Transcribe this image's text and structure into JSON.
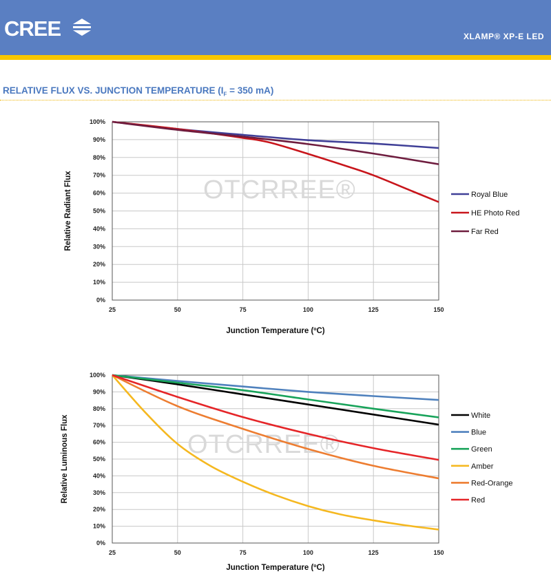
{
  "header": {
    "brand": "CREE",
    "product": "XLAMP® XP-E LED",
    "header_color": "#5a7fc2",
    "stripe_color": "#f7c600"
  },
  "section": {
    "title_main": "RELATIVE FLUX VS. JUNCTION TEMPERATURE (I",
    "title_sub": "F",
    "title_end": " = 350 mA)"
  },
  "watermark": "OTCRREE®",
  "chart_data": [
    {
      "type": "line",
      "title": "",
      "xlabel": "Junction Temperature (ºC)",
      "ylabel": "Relative Radiant Flux",
      "xlim": [
        25,
        150
      ],
      "ylim": [
        0,
        100
      ],
      "x_ticks": [
        "25",
        "50",
        "75",
        "100",
        "125",
        "150"
      ],
      "y_ticks": [
        "0%",
        "10%",
        "20%",
        "30%",
        "40%",
        "50%",
        "60%",
        "70%",
        "80%",
        "90%",
        "100%"
      ],
      "grid": true,
      "legend": "right",
      "series": [
        {
          "name": "Royal Blue",
          "color": "#3f3f97",
          "x": [
            25,
            50,
            75,
            100,
            125,
            150
          ],
          "y": [
            100,
            96,
            92.7,
            89.7,
            87.8,
            85.3
          ]
        },
        {
          "name": "HE Photo Red",
          "color": "#c8151b",
          "x": [
            25,
            50,
            75,
            85,
            100,
            115,
            125,
            140,
            150
          ],
          "y": [
            100,
            96,
            91,
            88.5,
            82,
            75,
            70,
            61,
            55
          ]
        },
        {
          "name": "Far Red",
          "color": "#6e1c3e",
          "x": [
            25,
            50,
            75,
            100,
            125,
            150
          ],
          "y": [
            100,
            95.5,
            91.7,
            87.5,
            82.2,
            76.2
          ]
        }
      ]
    },
    {
      "type": "line",
      "title": "",
      "xlabel": "Junction Temperature (ºC)",
      "ylabel": "Relative Luminous Flux",
      "xlim": [
        25,
        150
      ],
      "ylim": [
        0,
        100
      ],
      "x_ticks": [
        "25",
        "50",
        "75",
        "100",
        "125",
        "150"
      ],
      "y_ticks": [
        "0%",
        "10%",
        "20%",
        "30%",
        "40%",
        "50%",
        "60%",
        "70%",
        "80%",
        "90%",
        "100%"
      ],
      "grid": true,
      "legend": "right",
      "series": [
        {
          "name": "White",
          "color": "#000000",
          "x": [
            25,
            50,
            75,
            100,
            125,
            150
          ],
          "y": [
            100,
            94.5,
            88.5,
            82.5,
            76.5,
            70.5
          ]
        },
        {
          "name": "Blue",
          "color": "#4f81bd",
          "x": [
            25,
            50,
            75,
            100,
            125,
            150
          ],
          "y": [
            100,
            96.5,
            93.2,
            90,
            87.5,
            85.2
          ]
        },
        {
          "name": "Green",
          "color": "#18a35a",
          "x": [
            25,
            50,
            75,
            100,
            125,
            150
          ],
          "y": [
            100,
            95.5,
            91,
            85.5,
            80,
            74.8
          ]
        },
        {
          "name": "Amber",
          "color": "#f5b820",
          "x": [
            25,
            37.5,
            50,
            62.5,
            75,
            87.5,
            100,
            112.5,
            125,
            137.5,
            150
          ],
          "y": [
            100,
            78,
            59,
            46,
            36.5,
            28.5,
            22,
            17,
            13.5,
            10.5,
            8
          ]
        },
        {
          "name": "Red-Orange",
          "color": "#ed7d31",
          "x": [
            25,
            50,
            75,
            100,
            125,
            150
          ],
          "y": [
            100,
            81.5,
            68,
            56,
            46,
            38.5
          ]
        },
        {
          "name": "Red",
          "color": "#e52528",
          "x": [
            25,
            50,
            75,
            100,
            125,
            150
          ],
          "y": [
            100,
            87,
            75,
            65,
            56.5,
            49.5
          ]
        }
      ]
    }
  ]
}
